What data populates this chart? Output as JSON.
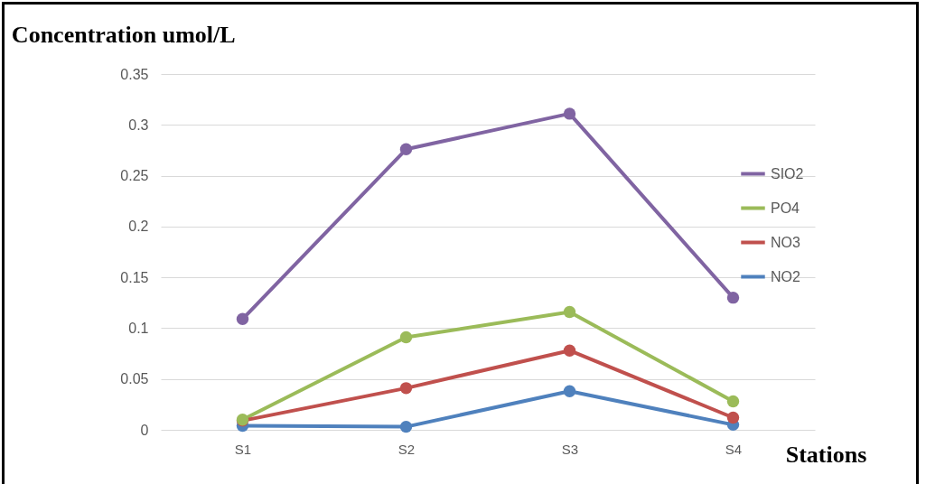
{
  "chart_data": {
    "type": "line",
    "title": "Concentration umol/L",
    "xlabel": "Stations",
    "categories": [
      "S1",
      "S2",
      "S3",
      "S4"
    ],
    "series": [
      {
        "name": "SIO2",
        "color": "#8064a2",
        "values": [
          0.109,
          0.276,
          0.311,
          0.13
        ]
      },
      {
        "name": "PO4",
        "color": "#9bbb59",
        "values": [
          0.01,
          0.091,
          0.116,
          0.028
        ]
      },
      {
        "name": "NO3",
        "color": "#c0504d",
        "values": [
          0.009,
          0.041,
          0.078,
          0.012
        ]
      },
      {
        "name": "NO2",
        "color": "#4f81bd",
        "values": [
          0.004,
          0.003,
          0.038,
          0.005
        ]
      }
    ],
    "ylim": [
      0,
      0.35
    ],
    "yticks": [
      0,
      0.05,
      0.1,
      0.15,
      0.2,
      0.25,
      0.3,
      0.35
    ],
    "grid": "y",
    "legend": "right",
    "marker": "circle",
    "line_style": "solid"
  }
}
